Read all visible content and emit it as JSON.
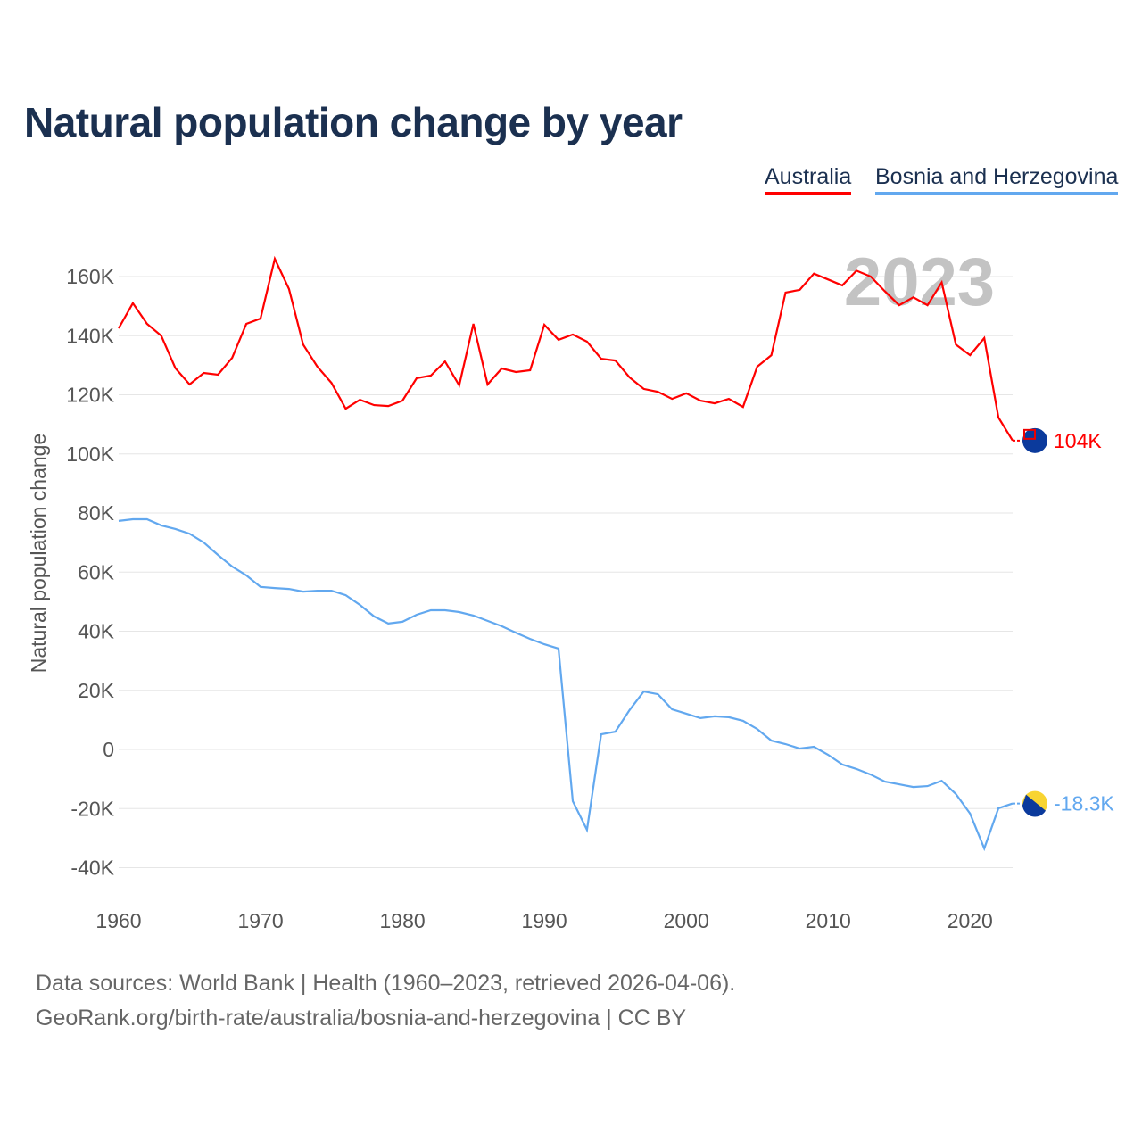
{
  "chart_data": {
    "type": "line",
    "title": "Natural population change by year",
    "xlabel": "",
    "ylabel": "Natural population change",
    "xlim": [
      1960,
      2023
    ],
    "ylim": [
      -50000,
      170000
    ],
    "yticks": [
      -40000,
      -20000,
      0,
      20000,
      40000,
      60000,
      80000,
      100000,
      120000,
      140000,
      160000
    ],
    "ytick_labels": [
      "-40K",
      "-20K",
      "0",
      "20K",
      "40K",
      "60K",
      "80K",
      "100K",
      "120K",
      "140K",
      "160K"
    ],
    "xticks": [
      1960,
      1970,
      1980,
      1990,
      2000,
      2010,
      2020
    ],
    "xtick_labels": [
      "1960",
      "1970",
      "1980",
      "1990",
      "2000",
      "2010",
      "2020"
    ],
    "grid": true,
    "legend_position": "top-right",
    "year_watermark": "2023",
    "x": [
      1960,
      1961,
      1962,
      1963,
      1964,
      1965,
      1966,
      1967,
      1968,
      1969,
      1970,
      1971,
      1972,
      1973,
      1974,
      1975,
      1976,
      1977,
      1978,
      1979,
      1980,
      1981,
      1982,
      1983,
      1984,
      1985,
      1986,
      1987,
      1988,
      1989,
      1990,
      1991,
      1992,
      1993,
      1994,
      1995,
      1996,
      1997,
      1998,
      1999,
      2000,
      2001,
      2002,
      2003,
      2004,
      2005,
      2006,
      2007,
      2008,
      2009,
      2010,
      2011,
      2012,
      2013,
      2014,
      2015,
      2016,
      2017,
      2018,
      2019,
      2020,
      2021,
      2022,
      2023
    ],
    "series": [
      {
        "name": "Australia",
        "color": "#ff0000",
        "end_label": "104K",
        "values": [
          142500,
          151000,
          144000,
          140000,
          129000,
          123500,
          127400,
          126800,
          132500,
          144000,
          145800,
          166000,
          155800,
          137000,
          129500,
          124000,
          115300,
          118300,
          116500,
          116200,
          118000,
          125600,
          126500,
          131300,
          123200,
          144000,
          123500,
          128900,
          127700,
          128300,
          143700,
          138600,
          140400,
          138000,
          132200,
          131600,
          125900,
          122000,
          121000,
          118600,
          120500,
          118000,
          117100,
          118600,
          115900,
          129500,
          133400,
          154600,
          155500,
          161000,
          159000,
          157000,
          162000,
          160000,
          155000,
          150300,
          153000,
          150300,
          158000,
          137000,
          133400,
          139200,
          112300,
          104500
        ]
      },
      {
        "name": "Bosnia and Herzegovina",
        "color": "#62a8ef",
        "end_label": "-18.3K",
        "values": [
          77300,
          77900,
          77900,
          75800,
          74600,
          73000,
          70000,
          65800,
          61900,
          58900,
          55000,
          54600,
          54300,
          53400,
          53700,
          53700,
          52200,
          48900,
          45000,
          42600,
          43200,
          45600,
          47100,
          47100,
          46500,
          45300,
          43500,
          41700,
          39500,
          37400,
          35600,
          34100,
          -17500,
          -27200,
          5100,
          6000,
          13300,
          19600,
          18700,
          13600,
          12100,
          10600,
          11200,
          10900,
          9700,
          6900,
          3000,
          1800,
          300,
          900,
          -1800,
          -5100,
          -6600,
          -8500,
          -10900,
          -11800,
          -12700,
          -12400,
          -10600,
          -15100,
          -21700,
          -33500,
          -19900,
          -18300
        ]
      }
    ]
  },
  "footer": {
    "line1": "Data sources: World Bank | Health (1960–2023, retrieved 2026-04-06).",
    "line2": "GeoRank.org/birth-rate/australia/bosnia-and-herzegovina | CC BY"
  }
}
